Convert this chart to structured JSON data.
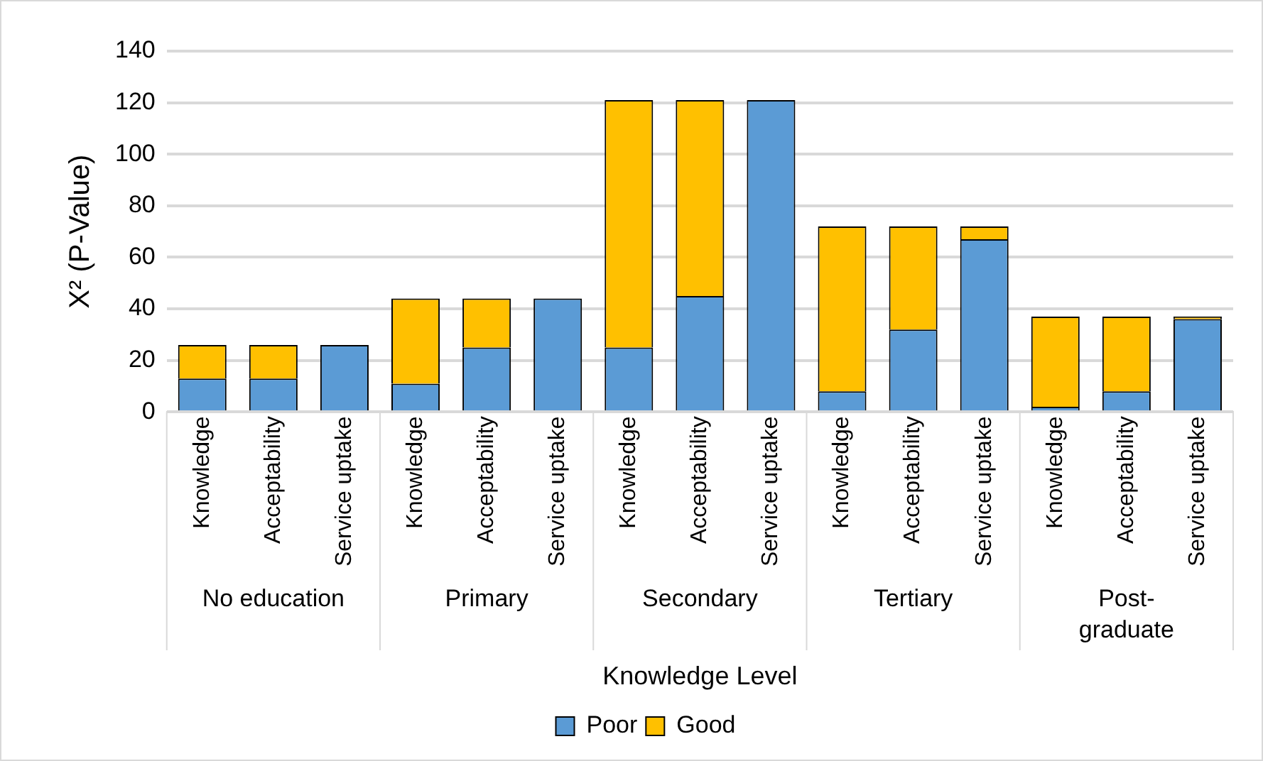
{
  "chart_data": {
    "type": "bar",
    "stacked": true,
    "xlabel": "Knowledge Level",
    "ylabel": "X² (P-Value)",
    "categories": [
      "Knowledge",
      "Acceptability",
      "Service uptake",
      "Knowledge",
      "Acceptability",
      "Service uptake",
      "Knowledge",
      "Acceptability",
      "Service uptake",
      "Knowledge",
      "Acceptability",
      "Service uptake",
      "Knowledge",
      "Acceptability",
      "Service uptake"
    ],
    "annotations": [
      "No education",
      "Primary",
      "Secondary",
      "Tertiary",
      "Post-\ngraduate"
    ],
    "series": [
      {
        "name": "Poor",
        "color": "#5b9bd5",
        "values": [
          13,
          13,
          26,
          11,
          25,
          44,
          25,
          45,
          121,
          8,
          32,
          67,
          2,
          8,
          36
        ]
      },
      {
        "name": "Good",
        "color": "#ffc000",
        "values": [
          13,
          13,
          0,
          33,
          19,
          0,
          96,
          76,
          0,
          64,
          40,
          5,
          35,
          29,
          1
        ]
      }
    ],
    "ylim": [
      0,
      140
    ],
    "yticks": [
      0,
      20,
      40,
      60,
      80,
      100,
      120,
      140
    ],
    "grid": "y",
    "legend": "bottom"
  }
}
